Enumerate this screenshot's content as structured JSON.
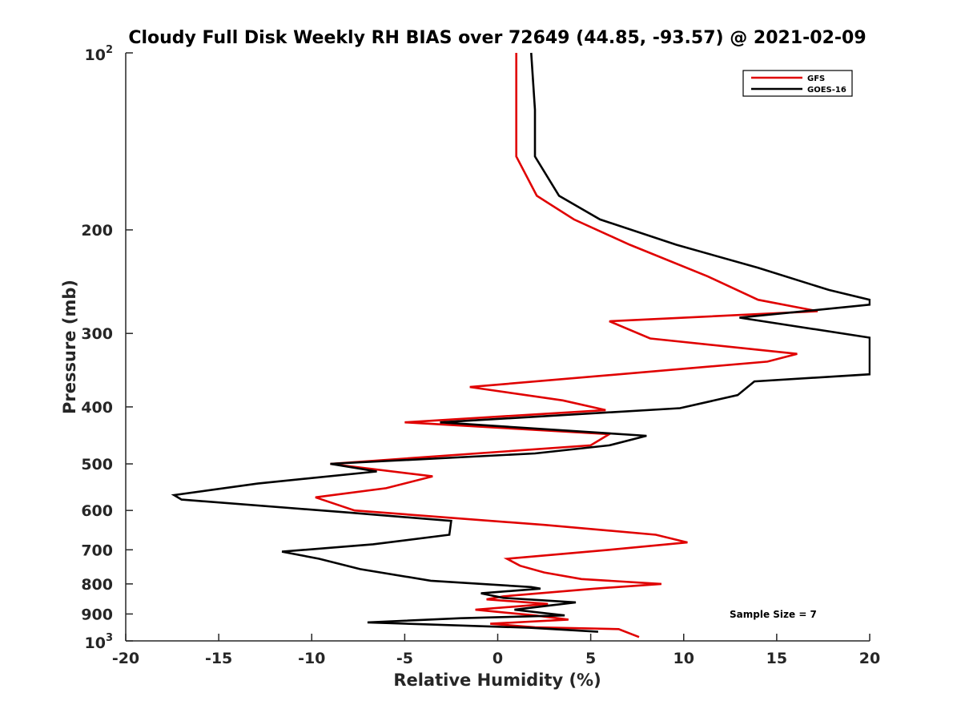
{
  "chart_data": {
    "type": "line",
    "title": "Cloudy Full Disk Weekly RH BIAS over 72649 (44.85, -93.57) @ 2021-02-09",
    "xlabel": "Relative Humidity (%)",
    "ylabel": "Pressure (mb)",
    "xlim": [
      -20,
      20
    ],
    "ylim": [
      1000,
      100
    ],
    "yscale": "log",
    "x_ticks": [
      "-20",
      "-15",
      "-10",
      "-5",
      "0",
      "5",
      "10",
      "15",
      "20"
    ],
    "y_ticks": [
      {
        "base": "10",
        "exp": "2",
        "value": 100
      },
      {
        "label": "200",
        "value": 200
      },
      {
        "label": "300",
        "value": 300
      },
      {
        "label": "400",
        "value": 400
      },
      {
        "label": "500",
        "value": 500
      },
      {
        "label": "600",
        "value": 600
      },
      {
        "label": "700",
        "value": 700
      },
      {
        "label": "800",
        "value": 800
      },
      {
        "label": "900",
        "value": 900
      },
      {
        "base": "10",
        "exp": "3",
        "value": 1000
      }
    ],
    "grid": false,
    "legend_position": "top-right",
    "annotation": "Sample Size = 7",
    "series": [
      {
        "name": "GFS",
        "color": "#e00000",
        "points": [
          [
            1.0,
            100
          ],
          [
            1.0,
            150
          ],
          [
            2.1,
            175
          ],
          [
            4.1,
            192
          ],
          [
            7.1,
            212
          ],
          [
            11.3,
            240
          ],
          [
            14.0,
            263
          ],
          [
            17.2,
            275
          ],
          [
            6.0,
            286
          ],
          [
            8.2,
            306
          ],
          [
            16.1,
            325
          ],
          [
            14.5,
            335
          ],
          [
            -1.5,
            370
          ],
          [
            3.5,
            390
          ],
          [
            5.8,
            405
          ],
          [
            -5.0,
            425
          ],
          [
            6.0,
            445
          ],
          [
            5.0,
            465
          ],
          [
            -9.0,
            500
          ],
          [
            -3.5,
            525
          ],
          [
            -6.0,
            550
          ],
          [
            -9.8,
            570
          ],
          [
            -7.7,
            600
          ],
          [
            2.5,
            635
          ],
          [
            8.5,
            660
          ],
          [
            10.2,
            680
          ],
          [
            6.0,
            700
          ],
          [
            0.5,
            725
          ],
          [
            1.2,
            745
          ],
          [
            2.5,
            765
          ],
          [
            4.5,
            785
          ],
          [
            8.8,
            800
          ],
          [
            5.2,
            815
          ],
          [
            0.3,
            840
          ],
          [
            -0.6,
            850
          ],
          [
            2.7,
            865
          ],
          [
            -1.2,
            885
          ],
          [
            2.0,
            905
          ],
          [
            3.8,
            920
          ],
          [
            -0.4,
            935
          ],
          [
            2.0,
            948
          ],
          [
            6.5,
            955
          ],
          [
            7.6,
            985
          ]
        ]
      },
      {
        "name": "GOES-16",
        "color": "#000000",
        "points": [
          [
            1.8,
            100
          ],
          [
            2.0,
            125
          ],
          [
            2.0,
            150
          ],
          [
            3.3,
            175
          ],
          [
            5.5,
            192
          ],
          [
            9.6,
            212
          ],
          [
            14.0,
            232
          ],
          [
            17.8,
            253
          ],
          [
            20.0,
            263
          ],
          [
            20.0,
            268
          ],
          [
            13.0,
            282
          ],
          [
            20.0,
            305
          ],
          [
            20.0,
            352
          ],
          [
            13.8,
            362
          ],
          [
            12.9,
            382
          ],
          [
            9.8,
            402
          ],
          [
            -3.1,
            425
          ],
          [
            8.0,
            448
          ],
          [
            6.0,
            465
          ],
          [
            2.0,
            480
          ],
          [
            -9.0,
            500
          ],
          [
            -6.5,
            515
          ],
          [
            -12.9,
            540
          ],
          [
            -17.4,
            565
          ],
          [
            -17.0,
            575
          ],
          [
            -8.0,
            605
          ],
          [
            -2.5,
            625
          ],
          [
            -2.6,
            660
          ],
          [
            -6.7,
            685
          ],
          [
            -11.6,
            705
          ],
          [
            -9.6,
            725
          ],
          [
            -7.4,
            755
          ],
          [
            -3.6,
            790
          ],
          [
            1.8,
            810
          ],
          [
            2.3,
            815
          ],
          [
            -0.9,
            830
          ],
          [
            0.3,
            845
          ],
          [
            4.2,
            860
          ],
          [
            0.9,
            885
          ],
          [
            3.6,
            905
          ],
          [
            -2.0,
            915
          ],
          [
            -7.0,
            930
          ],
          [
            1.7,
            950
          ],
          [
            5.4,
            965
          ]
        ]
      }
    ]
  }
}
